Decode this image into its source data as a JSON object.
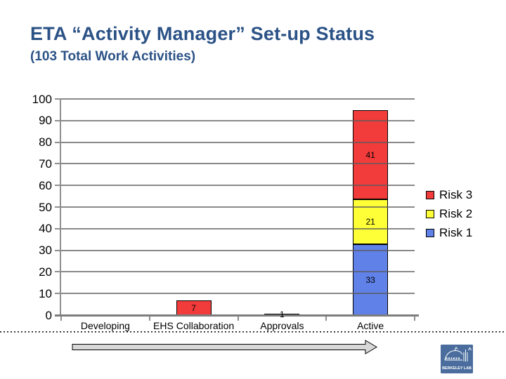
{
  "slide": {
    "title": "ETA “Activity Manager” Set-up Status",
    "subtitle": "(103 Total Work Activities)"
  },
  "chart_data": {
    "type": "bar",
    "stacked": true,
    "categories": [
      "Developing",
      "EHS Collaboration",
      "Approvals",
      "Active"
    ],
    "series": [
      {
        "name": "Risk 1",
        "color": "#5f81e8",
        "values": [
          0,
          0,
          0,
          33
        ]
      },
      {
        "name": "Risk 2",
        "color": "#ffff38",
        "values": [
          0,
          0,
          1,
          21
        ]
      },
      {
        "name": "Risk 3",
        "color": "#f23b3b",
        "values": [
          0,
          7,
          0,
          41
        ]
      }
    ],
    "ylim": [
      0,
      100
    ],
    "ytick_step": 10,
    "grid": true,
    "gridlines_over_bars": true,
    "data_labels": true,
    "legend_position": "right",
    "title": "",
    "xlabel": "",
    "ylabel": ""
  },
  "legend": {
    "items": [
      {
        "label": "Risk 3",
        "color": "#f23b3b"
      },
      {
        "label": "Risk 2",
        "color": "#ffff38"
      },
      {
        "label": "Risk 1",
        "color": "#5f81e8"
      }
    ]
  },
  "footer": {
    "logo_text": "BERKELEY LAB"
  },
  "colors": {
    "title_text": "#2b5286",
    "gridline": "#8f8f8f",
    "axis": "#7d7d7d",
    "arrow_fill": "#d8d8d8",
    "arrow_stroke": "#000000",
    "logo_bg": "#4a6d9e"
  }
}
